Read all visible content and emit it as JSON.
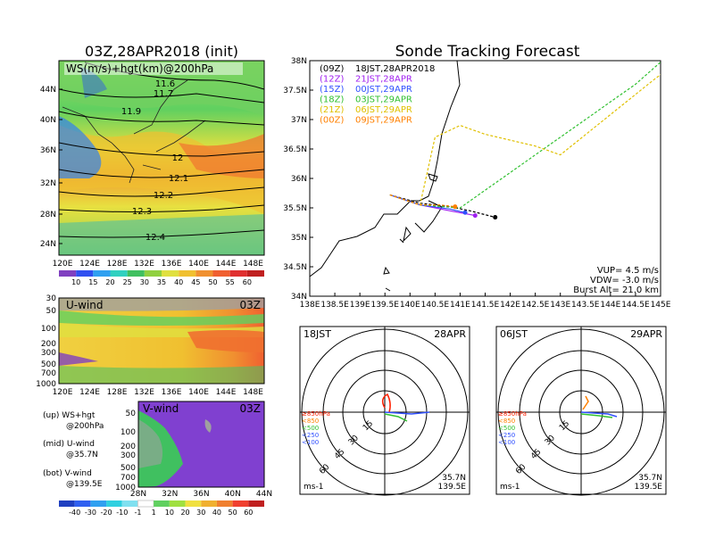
{
  "left_panel": {
    "title": "03Z,28APR2018 (init)",
    "map_label": "WS(m/s)+hgt(km)@200hPa",
    "contour_labels": [
      "11.6",
      "11.7",
      "11.9",
      "12",
      "12.1",
      "12.2",
      "12.3",
      "12.4"
    ],
    "lat_ticks": [
      "44N",
      "40N",
      "36N",
      "32N",
      "28N",
      "24N"
    ],
    "lon_ticks": [
      "120E",
      "124E",
      "128E",
      "132E",
      "136E",
      "140E",
      "144E",
      "148E"
    ],
    "ws_colorbar": [
      "10",
      "15",
      "20",
      "25",
      "30",
      "35",
      "40",
      "45",
      "50",
      "55",
      "60"
    ],
    "uwind_label": "U-wind",
    "uwind_time": "03Z",
    "pressure_ticks": [
      "30",
      "50",
      "100",
      "200",
      "300",
      "500",
      "700",
      "1000"
    ],
    "uwind_lon_ticks": [
      "120E",
      "124E",
      "128E",
      "132E",
      "136E",
      "140E",
      "144E",
      "148E"
    ],
    "vwind_label": "V-wind",
    "vwind_time": "03Z",
    "vwind_pressure_ticks": [
      "50",
      "100",
      "200",
      "300",
      "500",
      "700",
      "1000"
    ],
    "vwind_lat_ticks": [
      "28N",
      "32N",
      "36N",
      "40N",
      "44N"
    ],
    "legend_lines": [
      "(up) WS+hgt",
      "@200hPa",
      "(mid) U-wind",
      "@35.7N",
      "(bot) V-wind",
      "@139.5E"
    ],
    "wind_colorbar": [
      "-40",
      "-30",
      "-20",
      "-10",
      "-1",
      "1",
      "10",
      "20",
      "30",
      "40",
      "50",
      "60"
    ]
  },
  "track_panel": {
    "title": "Sonde Tracking Forecast",
    "lat_ticks": [
      "38N",
      "37.5N",
      "37N",
      "36.5N",
      "36N",
      "35.5N",
      "35N",
      "34.5N",
      "34N"
    ],
    "lon_ticks": [
      "138E",
      "138.5E",
      "139E",
      "139.5E",
      "140E",
      "140.5E",
      "141E",
      "141.5E",
      "142E",
      "142.5E",
      "143E",
      "143.5E",
      "144E",
      "144.5E",
      "145E"
    ],
    "runs": [
      {
        "code": "(09Z)",
        "label": "18JST,28APR2018",
        "color": "#000000"
      },
      {
        "code": "(12Z)",
        "label": "21JST,28APR",
        "color": "#a020f0"
      },
      {
        "code": "(15Z)",
        "label": "00JST,29APR",
        "color": "#3050ff"
      },
      {
        "code": "(18Z)",
        "label": "03JST,29APR",
        "color": "#30c030"
      },
      {
        "code": "(21Z)",
        "label": "06JST,29APR",
        "color": "#e0c000"
      },
      {
        "code": "(00Z)",
        "label": "09JST,29APR",
        "color": "#ff8000"
      }
    ],
    "vup": "VUP= 4.5 m/s",
    "vdw": "VDW= -3.0 m/s",
    "burst": "Burst Alt= 21.0 km"
  },
  "hodo_left": {
    "time": "18JST",
    "date": "28APR",
    "levels": [
      "≥850hPa",
      "<850",
      "<500",
      "<250",
      "<100"
    ],
    "level_colors": [
      "#ff2000",
      "#ff8000",
      "#30c030",
      "#3050ff",
      "#3050ff"
    ],
    "ring_labels": [
      "15",
      "30",
      "45",
      "60"
    ],
    "unit": "ms-1",
    "lat": "35.7N",
    "lon": "139.5E"
  },
  "hodo_right": {
    "time": "06JST",
    "date": "29APR",
    "levels": [
      "≥850hPa",
      "<850",
      "<500",
      "<250",
      "<100"
    ],
    "level_colors": [
      "#ff2000",
      "#ff8000",
      "#30c030",
      "#3050ff",
      "#3050ff"
    ],
    "ring_labels": [
      "15",
      "30",
      "45",
      "60"
    ],
    "unit": "ms-1",
    "lat": "35.7N",
    "lon": "139.5E"
  },
  "chart_data": [
    {
      "type": "line",
      "title": "Sonde Tracking Forecast",
      "xlim": [
        138,
        145
      ],
      "ylim": [
        34,
        38
      ],
      "series": [
        {
          "name": "18JST,28APR2018",
          "x": [
            139.6,
            140.2,
            140.8,
            141.2,
            141.7
          ],
          "y": [
            35.72,
            35.58,
            35.52,
            35.45,
            35.34
          ]
        },
        {
          "name": "21JST,28APR",
          "x": [
            139.6,
            140.2,
            140.8,
            141.3
          ],
          "y": [
            35.72,
            35.55,
            35.45,
            35.37
          ]
        },
        {
          "name": "00JST,29APR",
          "x": [
            139.6,
            140.2,
            140.8,
            141.1
          ],
          "y": [
            35.72,
            35.55,
            35.48,
            35.42
          ]
        },
        {
          "name": "03JST,29APR",
          "x": [
            139.6,
            140.2,
            141.0,
            144.5,
            145.3
          ],
          "y": [
            35.72,
            35.55,
            35.5,
            37.6,
            38.2
          ]
        },
        {
          "name": "06JST,29APR",
          "x": [
            139.6,
            140.2,
            140.5,
            141.0,
            141.5,
            142.5,
            143.0,
            144.9,
            145.4
          ],
          "y": [
            35.72,
            35.55,
            36.7,
            36.9,
            36.75,
            36.55,
            36.4,
            37.7,
            38.0
          ]
        },
        {
          "name": "09JST,29APR",
          "x": [
            139.6,
            140.2,
            140.6,
            140.9
          ],
          "y": [
            35.72,
            35.55,
            35.55,
            35.52
          ]
        }
      ]
    },
    {
      "type": "heatmap",
      "title": "WS(m/s)+hgt(km)@200hPa",
      "xlim": [
        120,
        150
      ],
      "ylim": [
        22,
        47
      ],
      "contour_levels_km": [
        11.6,
        11.7,
        11.9,
        12,
        12.1,
        12.2,
        12.3,
        12.4
      ],
      "colorbar": [
        10,
        15,
        20,
        25,
        30,
        35,
        40,
        45,
        50,
        55,
        60
      ]
    }
  ]
}
